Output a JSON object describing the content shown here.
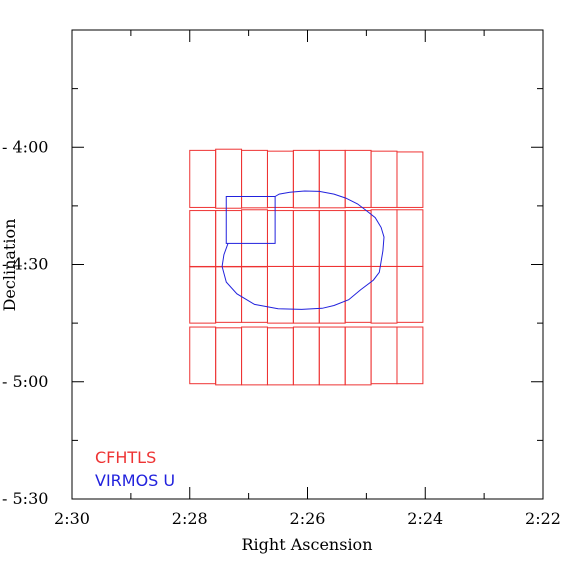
{
  "chart_data": {
    "type": "scatter",
    "title": "",
    "xlabel": "Right Ascension",
    "ylabel": "Declination",
    "xlim": [
      150,
      132
    ],
    "ylim": [
      270,
      330
    ],
    "x_ticks": [
      {
        "value": 150,
        "label": "2:30"
      },
      {
        "value": 148,
        "label": "2:28"
      },
      {
        "value": 146,
        "label": "2:26"
      },
      {
        "value": 144,
        "label": "2:24"
      },
      {
        "value": 142,
        "label": "2:22"
      }
    ],
    "y_ticks": [
      {
        "value": 270,
        "label": "- 4:00"
      },
      {
        "value": 300,
        "label": "- 4:30"
      },
      {
        "value": 330,
        "label": "- 5:00"
      },
      {
        "value": 360,
        "label": "- 5:30"
      }
    ],
    "y_range_full": [
      240,
      360
    ],
    "x_range_full": [
      150,
      142
    ],
    "legend": [
      {
        "name": "CFHTLS",
        "color": "#ee3333"
      },
      {
        "name": "VIRMOS U",
        "color": "#2222dd"
      }
    ],
    "series": [
      {
        "name": "CFHTLS",
        "color": "#ee3333",
        "kind": "rects",
        "rects": [
          [
            148.0,
            147.56,
            270.8,
            285.4
          ],
          [
            147.56,
            147.12,
            270.5,
            285.6
          ],
          [
            147.12,
            146.68,
            270.8,
            285.5
          ],
          [
            146.68,
            146.24,
            271.0,
            285.4
          ],
          [
            146.24,
            145.8,
            270.8,
            285.5
          ],
          [
            145.8,
            145.36,
            270.8,
            285.5
          ],
          [
            145.36,
            144.92,
            270.8,
            285.4
          ],
          [
            144.92,
            144.48,
            271.0,
            285.4
          ],
          [
            144.48,
            144.04,
            271.2,
            285.4
          ],
          [
            148.0,
            147.56,
            286.2,
            300.5
          ],
          [
            147.56,
            147.12,
            286.2,
            300.5
          ],
          [
            147.12,
            146.68,
            286.0,
            300.6
          ],
          [
            146.68,
            146.24,
            286.2,
            300.5
          ],
          [
            146.24,
            145.8,
            286.2,
            300.5
          ],
          [
            145.8,
            145.36,
            286.2,
            300.5
          ],
          [
            145.36,
            144.92,
            286.2,
            300.5
          ],
          [
            144.92,
            144.48,
            286.0,
            300.5
          ],
          [
            144.48,
            144.04,
            286.0,
            300.5
          ],
          [
            148.0,
            147.56,
            300.6,
            315.0
          ],
          [
            147.56,
            147.12,
            300.6,
            314.8
          ],
          [
            147.12,
            146.68,
            300.5,
            314.8
          ],
          [
            146.68,
            146.24,
            300.5,
            315.0
          ],
          [
            146.24,
            145.8,
            300.5,
            315.0
          ],
          [
            145.8,
            145.36,
            300.5,
            315.0
          ],
          [
            145.36,
            144.92,
            300.5,
            314.8
          ],
          [
            144.92,
            144.48,
            300.5,
            315.0
          ],
          [
            144.48,
            144.04,
            300.5,
            314.8
          ],
          [
            148.0,
            147.56,
            316.0,
            330.5
          ],
          [
            147.56,
            147.12,
            316.2,
            330.8
          ],
          [
            147.12,
            146.68,
            316.0,
            330.8
          ],
          [
            146.68,
            146.24,
            316.2,
            330.8
          ],
          [
            146.24,
            145.8,
            316.0,
            330.8
          ],
          [
            145.8,
            145.36,
            316.0,
            330.8
          ],
          [
            145.36,
            144.92,
            316.0,
            330.8
          ],
          [
            144.92,
            144.48,
            316.0,
            330.5
          ],
          [
            144.48,
            144.04,
            316.0,
            330.5
          ]
        ]
      },
      {
        "name": "VIRMOS U",
        "color": "#2222dd",
        "kind": "polylines",
        "rect": [
          147.38,
          146.55,
          282.6,
          294.6
        ],
        "outline": [
          [
            146.55,
            282.6
          ],
          [
            146.48,
            282.0
          ],
          [
            146.3,
            281.5
          ],
          [
            146.05,
            281.2
          ],
          [
            145.8,
            281.3
          ],
          [
            145.55,
            282.0
          ],
          [
            145.35,
            283.0
          ],
          [
            145.15,
            284.5
          ],
          [
            145.0,
            286.2
          ],
          [
            144.85,
            288.0
          ],
          [
            144.75,
            290.5
          ],
          [
            144.7,
            293.0
          ],
          [
            144.72,
            296.5
          ],
          [
            144.78,
            302.0
          ],
          [
            144.88,
            304.0
          ],
          [
            145.1,
            306.5
          ],
          [
            145.3,
            309.0
          ],
          [
            145.55,
            310.5
          ],
          [
            145.75,
            311.2
          ],
          [
            146.1,
            311.5
          ],
          [
            146.5,
            311.3
          ],
          [
            146.9,
            310.2
          ],
          [
            147.2,
            307.5
          ],
          [
            147.38,
            304.5
          ],
          [
            147.45,
            300.5
          ],
          [
            147.42,
            297.5
          ],
          [
            147.35,
            294.6
          ]
        ]
      }
    ]
  }
}
